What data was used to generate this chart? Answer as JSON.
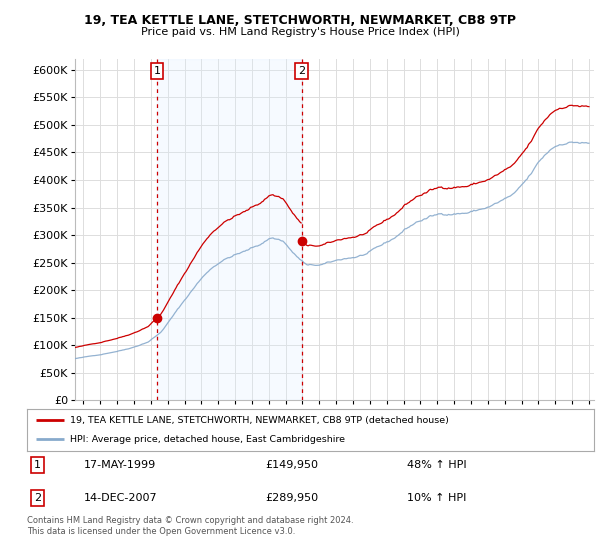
{
  "title": "19, TEA KETTLE LANE, STETCHWORTH, NEWMARKET, CB8 9TP",
  "subtitle": "Price paid vs. HM Land Registry's House Price Index (HPI)",
  "hpi_label": "HPI: Average price, detached house, East Cambridgeshire",
  "property_label": "19, TEA KETTLE LANE, STETCHWORTH, NEWMARKET, CB8 9TP (detached house)",
  "annotation1_date": "17-MAY-1999",
  "annotation1_price": "£149,950",
  "annotation1_hpi": "48% ↑ HPI",
  "annotation2_date": "14-DEC-2007",
  "annotation2_price": "£289,950",
  "annotation2_hpi": "10% ↑ HPI",
  "footnote": "Contains HM Land Registry data © Crown copyright and database right 2024.\nThis data is licensed under the Open Government Licence v3.0.",
  "ylim": [
    0,
    620000
  ],
  "yticks": [
    0,
    50000,
    100000,
    150000,
    200000,
    250000,
    300000,
    350000,
    400000,
    450000,
    500000,
    550000,
    600000
  ],
  "xlim_start": 1994.5,
  "xlim_end": 2025.3,
  "background_color": "#ffffff",
  "grid_color": "#dddddd",
  "shade_color": "#ddeeff",
  "red_color": "#cc0000",
  "blue_color": "#88aacc",
  "annotation1_year": 1999.37,
  "annotation1_value": 149950,
  "annotation2_year": 2007.95,
  "annotation2_value": 289950
}
